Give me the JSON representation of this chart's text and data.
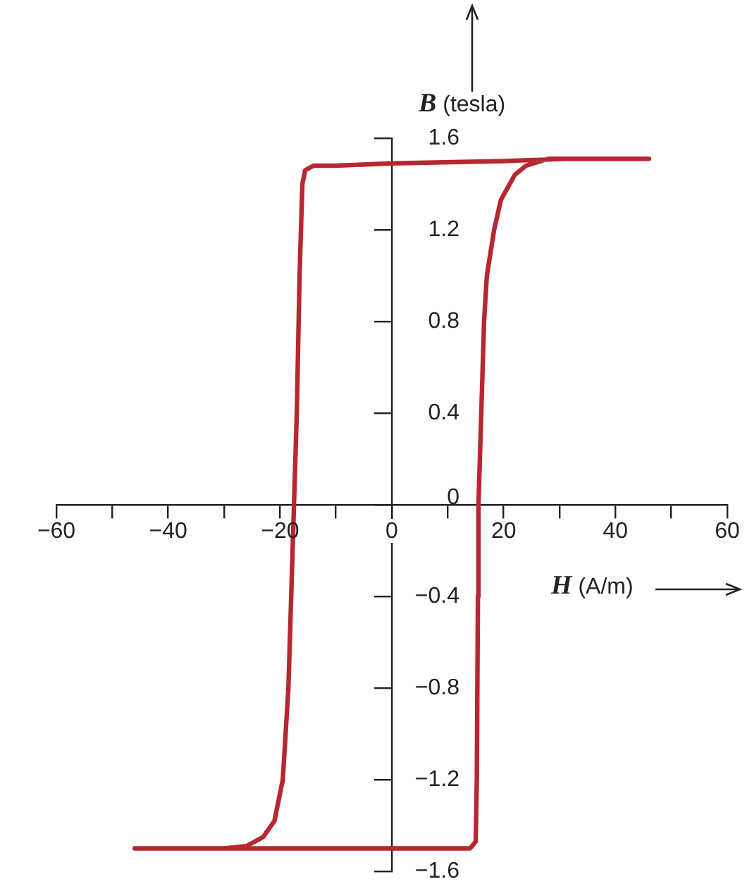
{
  "chart_data": {
    "type": "line",
    "xlabel": "H (A/m)",
    "ylabel": "B (tesla)",
    "series": [
      {
        "color": "#b8272f",
        "x": [
          46,
          31,
          20,
          0,
          -10,
          -14,
          -15.5,
          -16,
          -16.5,
          -17,
          -17.5,
          -18,
          -18.5,
          -19.5,
          -21,
          -23,
          -26,
          -30,
          -46,
          -30,
          0,
          12,
          14,
          15,
          15.2,
          15.4,
          15.5,
          16,
          16.5,
          17,
          18.3,
          19.5,
          22,
          24,
          28,
          31
        ],
        "values": [
          1.51,
          1.51,
          1.5,
          1.49,
          1.48,
          1.48,
          1.46,
          1.4,
          1.0,
          0.4,
          0,
          -0.4,
          -0.8,
          -1.2,
          -1.38,
          -1.45,
          -1.49,
          -1.5,
          -1.5,
          -1.5,
          -1.5,
          -1.5,
          -1.5,
          -1.47,
          -1.2,
          -0.4,
          0,
          0.4,
          0.8,
          1.0,
          1.2,
          1.33,
          1.44,
          1.48,
          1.51,
          1.51
        ]
      }
    ],
    "xlim": [
      -60,
      60
    ],
    "xticks": [
      {
        "value": -60,
        "label": "−60"
      },
      {
        "value": -50,
        "label": null
      },
      {
        "value": -40,
        "label": "−40"
      },
      {
        "value": -30,
        "label": null
      },
      {
        "value": -20,
        "label": "−20"
      },
      {
        "value": -10,
        "label": null
      },
      0,
      {
        "value": 10,
        "label": null
      },
      20,
      {
        "value": 30,
        "label": null
      },
      40,
      {
        "value": 50,
        "label": null
      },
      60
    ],
    "ylim": [
      -1.6,
      1.6
    ],
    "yticks": [
      {
        "value": -1.6,
        "label": "−1.6"
      },
      {
        "value": -1.2,
        "label": "−1.2"
      },
      {
        "value": -0.8,
        "label": "−0.8"
      },
      {
        "value": -0.4,
        "label": "−0.4"
      },
      0,
      0.4,
      0.8,
      1.2,
      1.6
    ],
    "grid": false,
    "legend": false,
    "marker": "none",
    "line_style": "solid"
  }
}
